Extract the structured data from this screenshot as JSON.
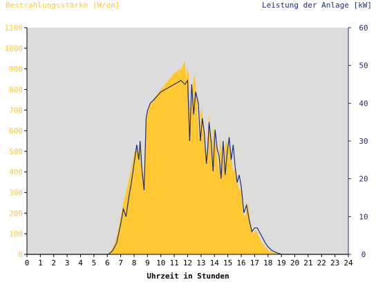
{
  "chart_data": {
    "type": "area",
    "title_left": "Bestrahlungsstärke [W/qm]",
    "title_right": "Leistung der Anlage [kW]",
    "xlabel": "Uhrzeit in Stunden",
    "xlim": [
      0,
      24
    ],
    "ylim_left": [
      0,
      1100
    ],
    "ylim_right": [
      0,
      60
    ],
    "x_ticks": [
      "0",
      "1",
      "2",
      "3",
      "4",
      "5",
      "6",
      "7",
      "8",
      "9",
      "10",
      "11",
      "12",
      "13",
      "14",
      "15",
      "16",
      "17",
      "18",
      "19",
      "20",
      "21",
      "22",
      "23",
      "24"
    ],
    "y_ticks_left": [
      "0",
      "100",
      "200",
      "300",
      "400",
      "500",
      "600",
      "700",
      "800",
      "900",
      "1000",
      "1100"
    ],
    "y_ticks_right": [
      "0",
      "10",
      "20",
      "30",
      "40",
      "50",
      "60"
    ],
    "grid": false,
    "colors": {
      "plot_bg": "#dcdcdc",
      "irradiance": "#ffc832",
      "power": "#1e2d78",
      "left_axis_text": "#ffc832",
      "right_axis_text": "#1e2d78"
    },
    "series": [
      {
        "axis": "left",
        "kind": "area",
        "x": [
          0,
          6.0,
          6.3,
          6.6,
          6.9,
          7.2,
          7.5,
          7.8,
          8.0,
          8.2,
          8.4,
          8.5,
          8.6,
          8.75,
          8.85,
          9.0,
          9.2,
          9.5,
          10.0,
          10.5,
          11.0,
          11.5,
          11.8,
          11.9,
          12.0,
          12.1,
          12.2,
          12.3,
          12.5,
          12.7,
          12.85,
          13.0,
          13.2,
          13.35,
          13.5,
          13.6,
          13.7,
          13.8,
          13.9,
          14.0,
          14.15,
          14.3,
          14.45,
          14.6,
          14.75,
          14.9,
          15.0,
          15.1,
          15.25,
          15.4,
          15.55,
          15.7,
          15.85,
          16.0,
          16.15,
          16.3,
          16.5,
          16.7,
          16.9,
          17.1,
          17.3,
          17.5,
          17.8,
          18.0,
          18.3,
          18.6,
          19.0,
          24
        ],
        "values": [
          0,
          0,
          20,
          60,
          150,
          250,
          330,
          420,
          490,
          530,
          460,
          560,
          420,
          370,
          600,
          680,
          730,
          760,
          800,
          840,
          880,
          900,
          940,
          850,
          910,
          860,
          600,
          780,
          880,
          760,
          540,
          720,
          640,
          450,
          580,
          680,
          560,
          460,
          620,
          560,
          520,
          400,
          570,
          430,
          520,
          560,
          500,
          560,
          480,
          400,
          420,
          350,
          320,
          310,
          200,
          180,
          250,
          150,
          100,
          120,
          90,
          60,
          40,
          20,
          10,
          5,
          0,
          0
        ]
      },
      {
        "axis": "right",
        "kind": "line",
        "x": [
          0,
          6.1,
          6.4,
          6.7,
          7.0,
          7.2,
          7.4,
          7.6,
          7.8,
          8.0,
          8.2,
          8.35,
          8.45,
          8.6,
          8.75,
          8.9,
          9.0,
          9.2,
          9.5,
          10.0,
          10.5,
          11.0,
          11.5,
          11.8,
          12.0,
          12.15,
          12.3,
          12.45,
          12.6,
          12.8,
          12.95,
          13.1,
          13.25,
          13.4,
          13.5,
          13.6,
          13.75,
          13.9,
          14.05,
          14.2,
          14.35,
          14.5,
          14.65,
          14.8,
          14.95,
          15.1,
          15.25,
          15.4,
          15.55,
          15.7,
          15.85,
          16.0,
          16.2,
          16.4,
          16.6,
          16.8,
          17.0,
          17.2,
          17.5,
          17.8,
          18.0,
          18.3,
          18.6,
          19.0,
          24
        ],
        "values": [
          0,
          0,
          1,
          3,
          8,
          12,
          10,
          15,
          19,
          24,
          29,
          25,
          30,
          22,
          17,
          36,
          38,
          40,
          41,
          43,
          44,
          45,
          46,
          45,
          46,
          30,
          45,
          37,
          43,
          40,
          30,
          36,
          32,
          24,
          28,
          35,
          30,
          22,
          33,
          28,
          26,
          20,
          30,
          21,
          27,
          31,
          25,
          29,
          23,
          19,
          21,
          18,
          11,
          13,
          9,
          6,
          7,
          7,
          5,
          3,
          2,
          1,
          0.5,
          0,
          0
        ]
      }
    ]
  }
}
